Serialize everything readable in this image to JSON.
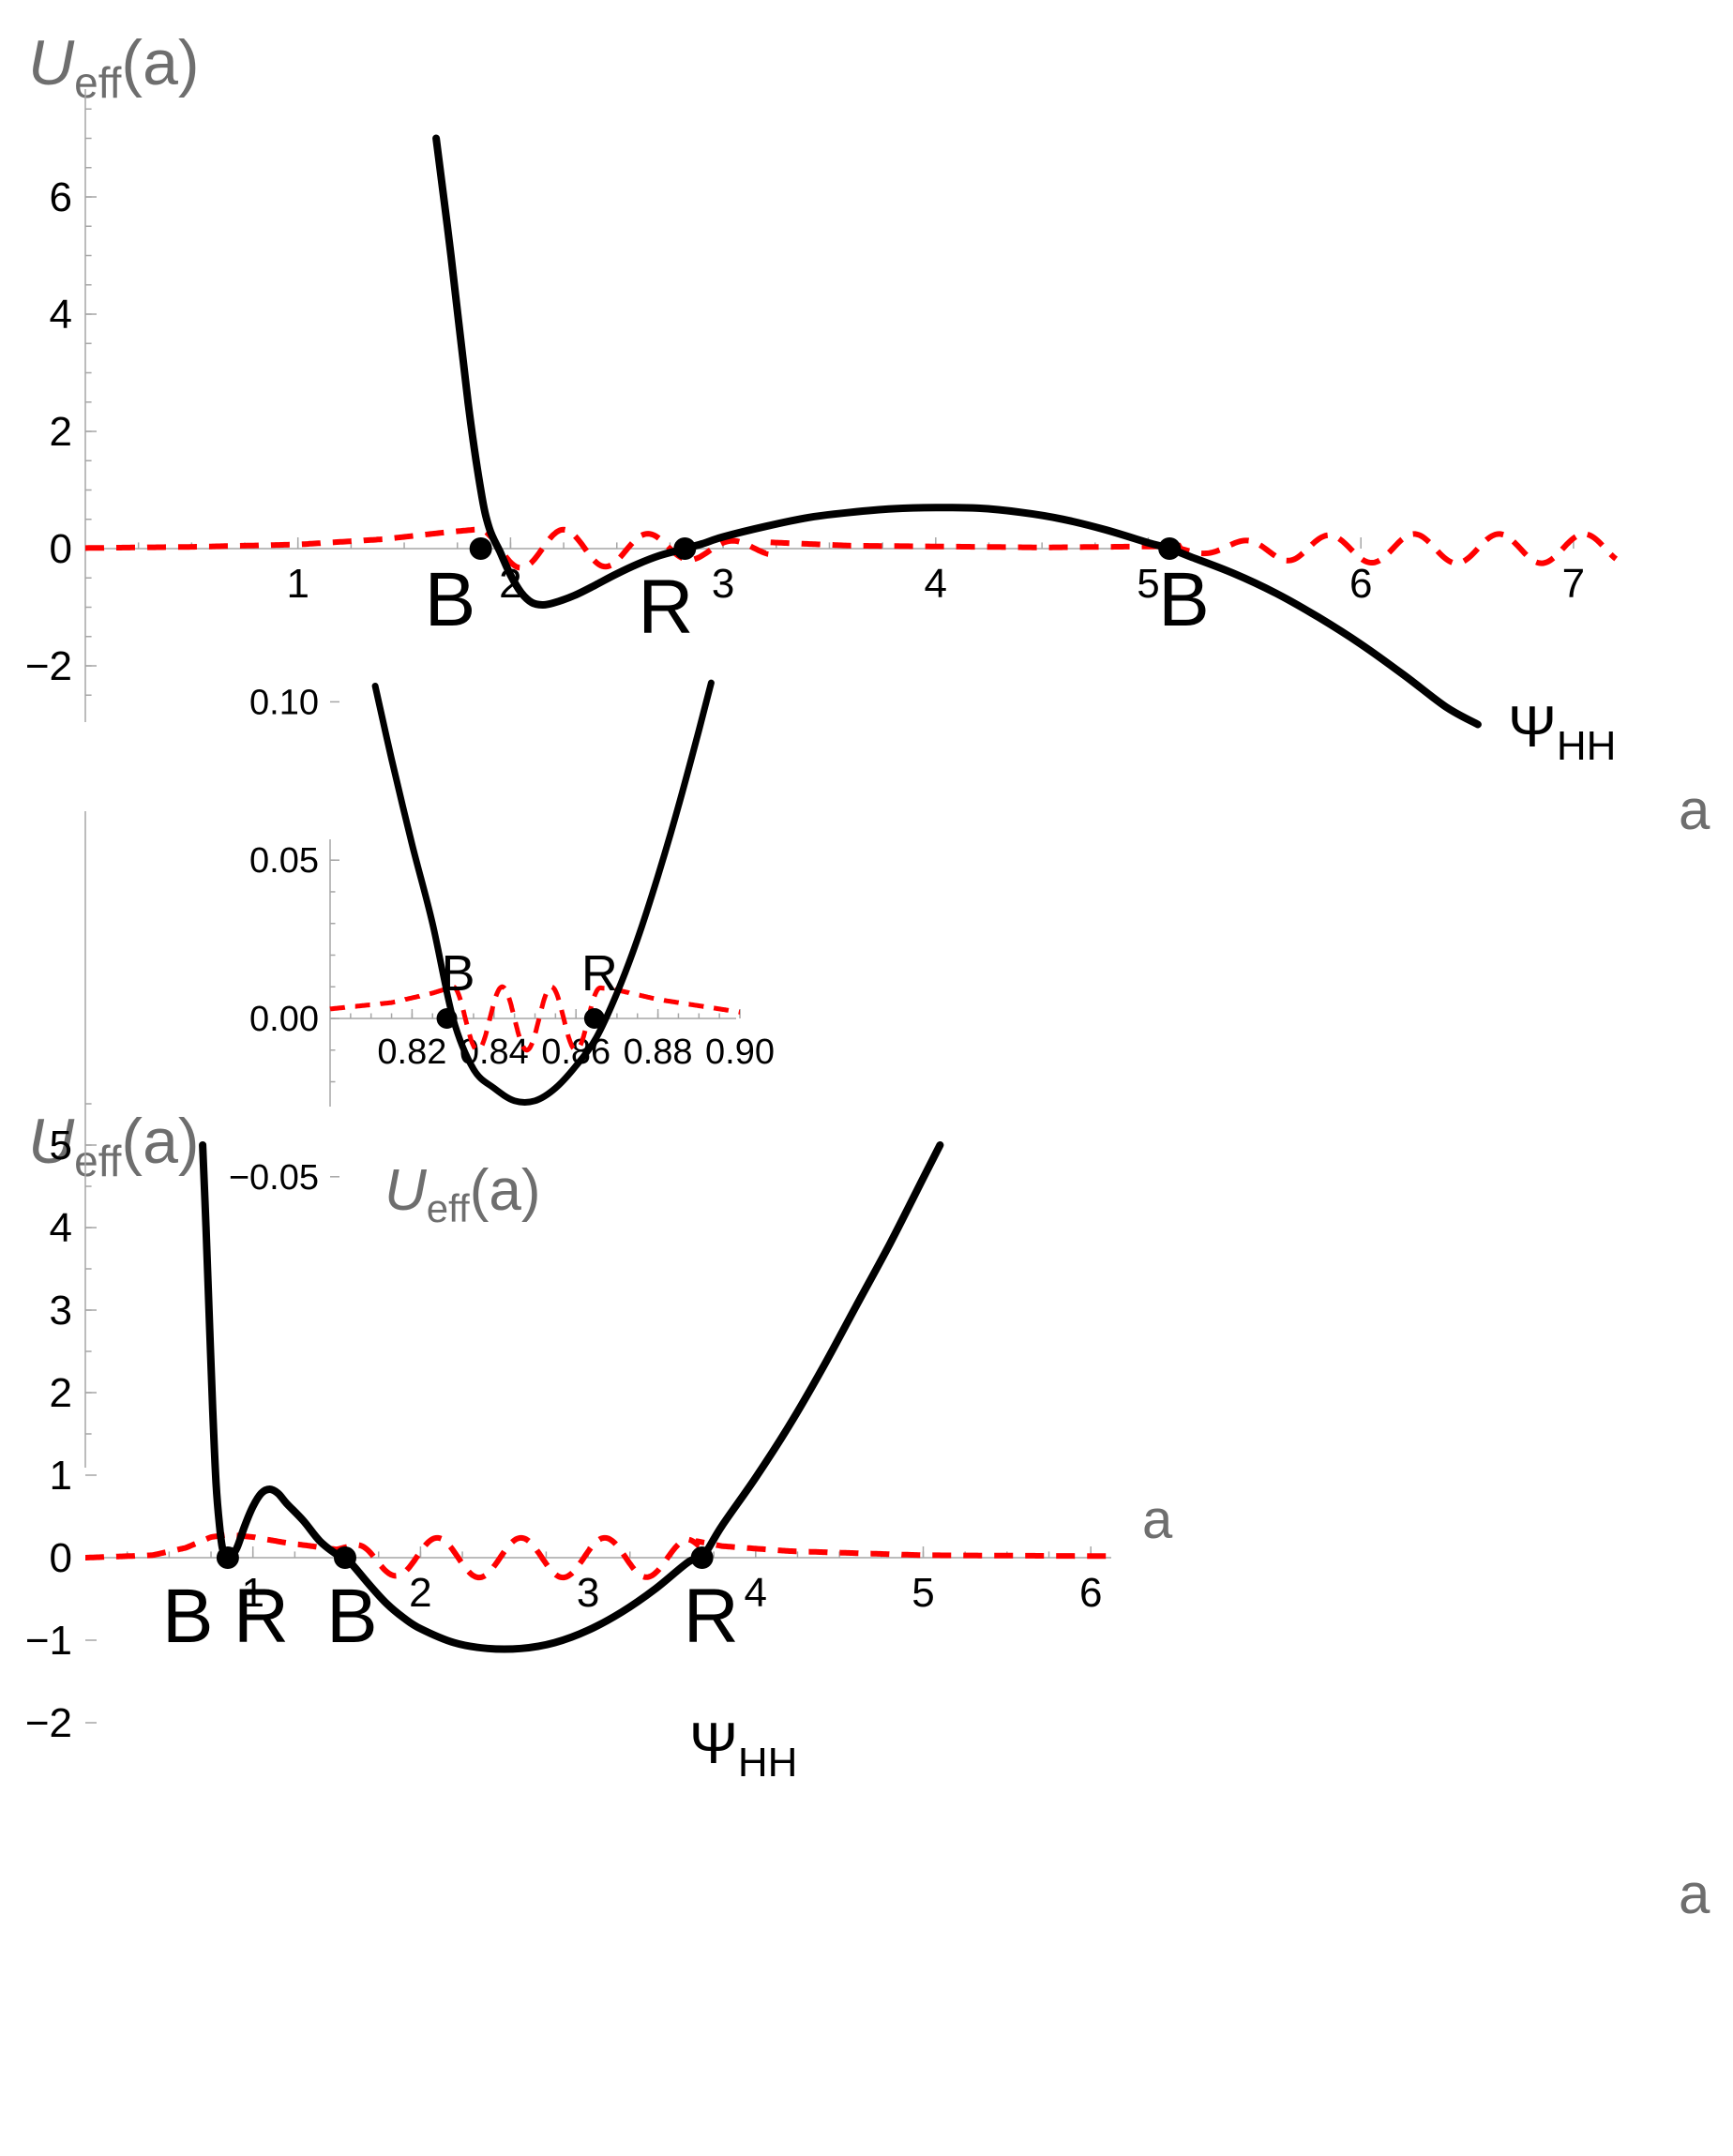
{
  "chart_data": [
    {
      "type": "line",
      "panel": "top",
      "ylabel": {
        "base": "U",
        "sub": "eff",
        "arg": "(a)"
      },
      "xlabel": "a",
      "xlim": [
        0,
        7.2
      ],
      "ylim": [
        -3,
        7.8
      ],
      "x_ticks": [
        1,
        2,
        3,
        4,
        5,
        6,
        7
      ],
      "x_tick_labels": [
        "1",
        "2",
        "3",
        "4",
        "5",
        "6",
        "7"
      ],
      "y_ticks": [
        -2,
        0,
        2,
        4,
        6
      ],
      "y_tick_labels": [
        "−2",
        "0",
        "2",
        "4",
        "6"
      ],
      "series": [
        {
          "name": "U_eff(a)",
          "color": "#000000",
          "style": "solid",
          "x": [
            1.65,
            1.72,
            1.8,
            1.86,
            1.9,
            1.95,
            2.0,
            2.05,
            2.1,
            2.15,
            2.2,
            2.3,
            2.4,
            2.5,
            2.6,
            2.7,
            2.8,
            2.9,
            3.0,
            3.2,
            3.4,
            3.6,
            3.8,
            4.0,
            4.2,
            4.4,
            4.6,
            4.8,
            5.0,
            5.1,
            5.2,
            5.4,
            5.6,
            5.8,
            6.0,
            6.2,
            6.4,
            6.55
          ],
          "y": [
            7.0,
            5.0,
            2.5,
            1.0,
            0.35,
            -0.05,
            -0.45,
            -0.75,
            -0.92,
            -0.96,
            -0.93,
            -0.8,
            -0.62,
            -0.43,
            -0.26,
            -0.12,
            -0.02,
            0.08,
            0.2,
            0.38,
            0.53,
            0.62,
            0.68,
            0.7,
            0.69,
            0.62,
            0.5,
            0.32,
            0.1,
            0.0,
            -0.14,
            -0.42,
            -0.76,
            -1.17,
            -1.63,
            -2.15,
            -2.7,
            -3.0
          ]
        },
        {
          "name": "Ψ_HH",
          "color": "#ff0000",
          "style": "dashed",
          "envelope": [
            [
              0.0,
              0.01
            ],
            [
              0.5,
              0.03
            ],
            [
              1.0,
              0.07
            ],
            [
              1.4,
              0.16
            ],
            [
              1.7,
              0.28
            ],
            [
              1.85,
              0.33
            ],
            [
              2.0,
              0.33
            ],
            [
              2.4,
              0.32
            ],
            [
              2.7,
              0.24
            ],
            [
              3.0,
              0.14
            ],
            [
              3.6,
              0.05
            ],
            [
              4.5,
              0.02
            ],
            [
              5.1,
              0.04
            ],
            [
              5.4,
              0.12
            ],
            [
              5.7,
              0.22
            ],
            [
              6.2,
              0.25
            ],
            [
              7.0,
              0.25
            ]
          ],
          "oscillation_onset": 1.85,
          "oscillation_end": 5.1,
          "wavelength": 0.4
        }
      ],
      "points": [
        {
          "x": 1.86,
          "y": 0,
          "label": "B"
        },
        {
          "x": 2.82,
          "y": 0,
          "label": "R"
        },
        {
          "x": 5.1,
          "y": 0,
          "label": "B"
        }
      ],
      "curve_label": {
        "base": "Ψ",
        "sub": "HH"
      }
    },
    {
      "type": "line",
      "panel": "bottom",
      "ylabel": {
        "base": "U",
        "sub": "eff",
        "arg": "(a)"
      },
      "xlabel": "a",
      "xlim": [
        0,
        6.15
      ],
      "ylim": [
        -2.3,
        5.5
      ],
      "x_ticks": [
        1,
        2,
        3,
        4,
        5,
        6
      ],
      "x_tick_labels": [
        "1",
        "2",
        "3",
        "4",
        "5",
        "6"
      ],
      "y_ticks": [
        -2,
        -1,
        0,
        1,
        2,
        3,
        4,
        5
      ],
      "y_tick_labels": [
        "−2",
        "−1",
        "0",
        "1",
        "2",
        "3",
        "4",
        "5"
      ],
      "series": [
        {
          "name": "U_eff(a)",
          "color": "#000000",
          "style": "solid",
          "x": [
            0.7,
            0.72,
            0.74,
            0.76,
            0.78,
            0.8,
            0.82,
            0.85,
            0.9,
            0.95,
            1.0,
            1.05,
            1.1,
            1.15,
            1.2,
            1.3,
            1.4,
            1.5,
            1.55,
            1.6,
            1.7,
            1.8,
            1.9,
            2.0,
            2.2,
            2.4,
            2.6,
            2.8,
            3.0,
            3.2,
            3.4,
            3.6,
            3.68,
            3.8,
            4.0,
            4.2,
            4.4,
            4.6,
            4.8,
            5.0,
            5.1
          ],
          "y": [
            5.0,
            4.0,
            2.9,
            1.8,
            0.9,
            0.4,
            0.1,
            0.0,
            0.1,
            0.38,
            0.62,
            0.78,
            0.83,
            0.78,
            0.66,
            0.45,
            0.2,
            0.04,
            0.0,
            -0.1,
            -0.34,
            -0.56,
            -0.73,
            -0.86,
            -1.03,
            -1.1,
            -1.1,
            -1.03,
            -0.88,
            -0.66,
            -0.38,
            -0.05,
            0.0,
            0.39,
            0.97,
            1.6,
            2.3,
            3.05,
            3.8,
            4.6,
            5.0
          ]
        },
        {
          "name": "Ψ_HH",
          "color": "#ff0000",
          "style": "dashed",
          "envelope": [
            [
              0.0,
              0.0
            ],
            [
              0.4,
              0.03
            ],
            [
              0.6,
              0.12
            ],
            [
              0.75,
              0.25
            ],
            [
              0.85,
              0.28
            ],
            [
              1.0,
              0.25
            ],
            [
              1.2,
              0.18
            ],
            [
              1.5,
              0.1
            ],
            [
              1.7,
              0.2
            ],
            [
              2.0,
              0.24
            ],
            [
              2.7,
              0.24
            ],
            [
              3.3,
              0.24
            ],
            [
              3.6,
              0.22
            ],
            [
              3.8,
              0.14
            ],
            [
              4.2,
              0.08
            ],
            [
              5.0,
              0.03
            ],
            [
              6.0,
              0.02
            ]
          ],
          "oscillation_onset": 1.6,
          "oscillation_end": 3.65,
          "wavelength": 0.5
        }
      ],
      "points": [
        {
          "x": 0.85,
          "y": 0,
          "label": "B"
        },
        {
          "x": 0.85,
          "y": 0,
          "label": "R"
        },
        {
          "x": 1.55,
          "y": 0,
          "label": "B"
        },
        {
          "x": 3.68,
          "y": 0,
          "label": "R"
        }
      ],
      "curve_label": {
        "base": "Ψ",
        "sub": "HH"
      }
    },
    {
      "type": "line",
      "panel": "inset",
      "ylabel": {
        "base": "U",
        "sub": "eff",
        "arg": "(a)"
      },
      "xlabel": "a",
      "xlim": [
        0.8,
        0.9
      ],
      "ylim": [
        -0.06,
        0.115
      ],
      "x_ticks": [
        0.82,
        0.84,
        0.86,
        0.88,
        0.9
      ],
      "x_tick_labels": [
        "0.82",
        "0.84",
        "0.86",
        "0.88",
        "0.90"
      ],
      "y_ticks": [
        -0.05,
        0.0,
        0.05,
        0.1
      ],
      "y_tick_labels": [
        "−0.05",
        "0.00",
        "0.05",
        "0.10"
      ],
      "series": [
        {
          "name": "U_eff(a)",
          "color": "#000000",
          "style": "solid",
          "x": [
            0.811,
            0.815,
            0.82,
            0.825,
            0.83,
            0.835,
            0.84,
            0.845,
            0.85,
            0.855,
            0.86,
            0.865,
            0.87,
            0.875,
            0.88,
            0.885,
            0.89,
            0.893
          ],
          "y": [
            0.105,
            0.082,
            0.055,
            0.03,
            0.0,
            -0.016,
            -0.022,
            -0.026,
            -0.026,
            -0.022,
            -0.015,
            -0.006,
            0.008,
            0.025,
            0.045,
            0.067,
            0.091,
            0.106
          ]
        },
        {
          "name": "Ψ_HH",
          "color": "#ff0000",
          "style": "dashed",
          "envelope": [
            [
              0.8,
              0.003
            ],
            [
              0.815,
              0.005
            ],
            [
              0.825,
              0.008
            ],
            [
              0.83,
              0.01
            ],
            [
              0.85,
              0.01
            ],
            [
              0.864,
              0.01
            ],
            [
              0.87,
              0.009
            ],
            [
              0.88,
              0.006
            ],
            [
              0.9,
              0.002
            ]
          ],
          "oscillation_onset": 0.83,
          "oscillation_end": 0.866,
          "wavelength": 0.012
        }
      ],
      "points": [
        {
          "x": 0.8285,
          "y": 0,
          "label": "B"
        },
        {
          "x": 0.8645,
          "y": 0,
          "label": "R"
        }
      ]
    }
  ]
}
